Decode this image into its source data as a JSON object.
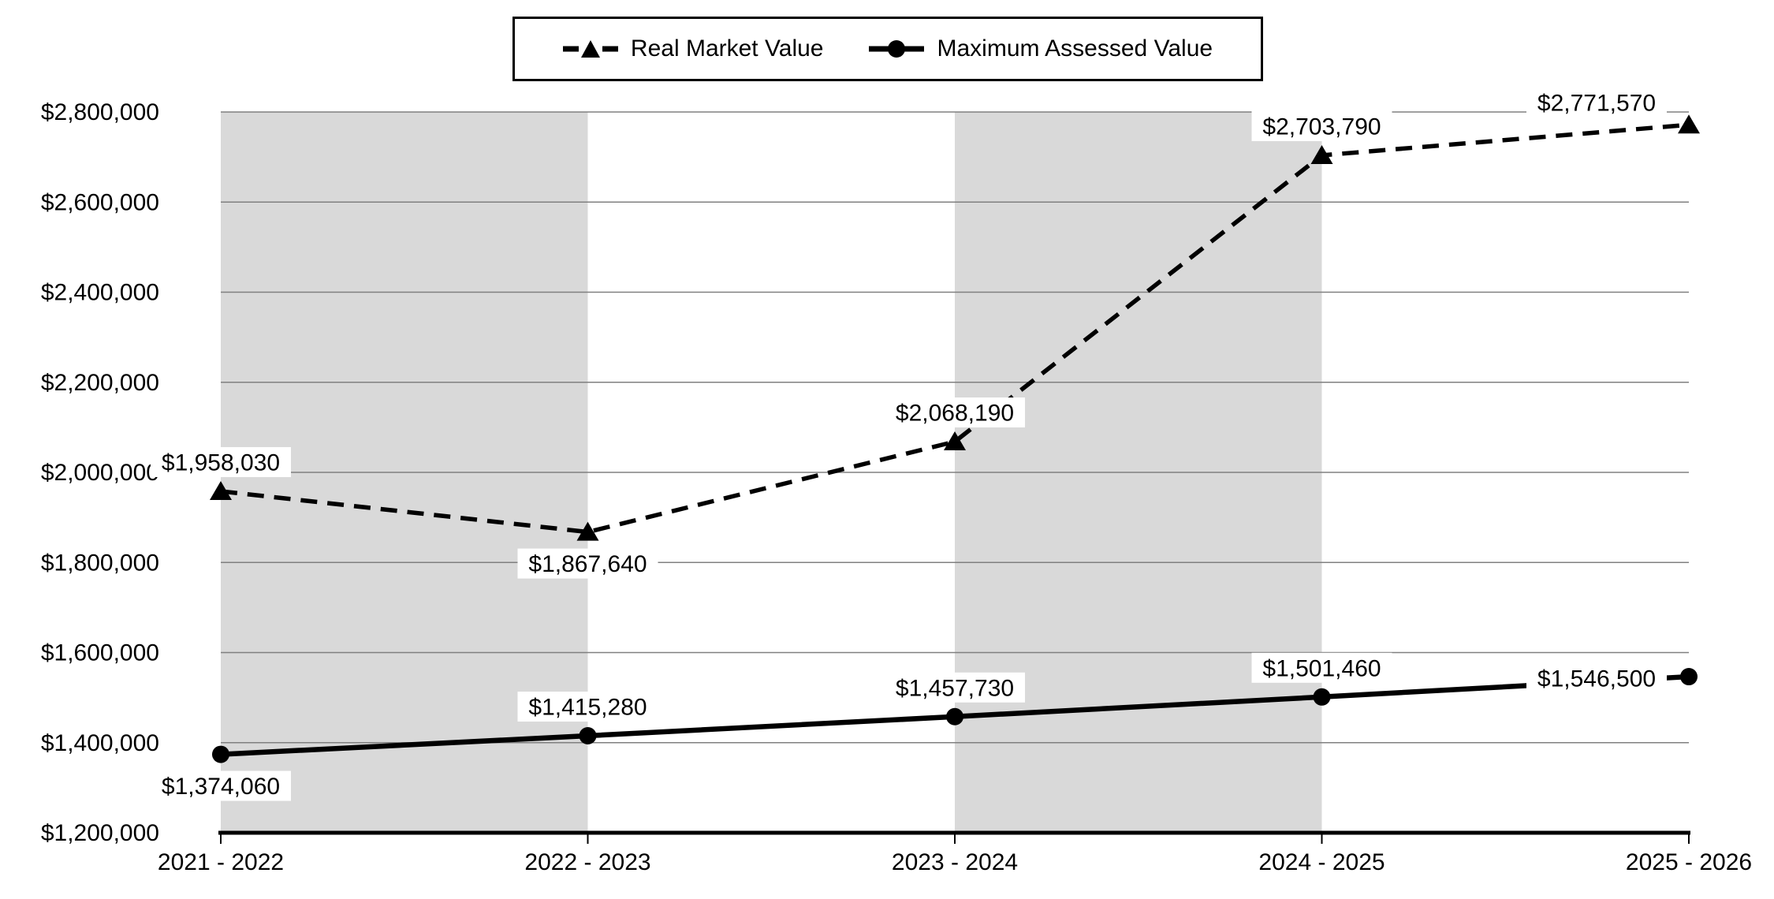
{
  "legend": {
    "items": [
      {
        "label": "Real Market Value"
      },
      {
        "label": "Maximum Assessed Value"
      }
    ]
  },
  "chart_data": {
    "type": "line",
    "title": "",
    "xlabel": "",
    "ylabel": "",
    "categories": [
      "2021 - 2022",
      "2022 - 2023",
      "2023 - 2024",
      "2024 - 2025",
      "2025 - 2026"
    ],
    "series": [
      {
        "name": "Real Market Value",
        "line_style": "dashed",
        "marker": "triangle",
        "color": "#000000",
        "values": [
          1958030,
          1867640,
          2068190,
          2703790,
          2771570
        ],
        "data_labels": [
          "$1,958,030",
          "$1,867,640",
          "$2,068,190",
          "$2,703,790",
          "$2,771,570"
        ],
        "label_positions": [
          "above",
          "below",
          "above",
          "above",
          "left-up"
        ]
      },
      {
        "name": "Maximum Assessed Value",
        "line_style": "solid",
        "marker": "circle",
        "color": "#000000",
        "values": [
          1374060,
          1415280,
          1457730,
          1501460,
          1546500
        ],
        "data_labels": [
          "$1,374,060",
          "$1,415,280",
          "$1,457,730",
          "$1,501,460",
          "$1,546,500"
        ],
        "label_positions": [
          "below",
          "above",
          "above",
          "above",
          "left"
        ]
      }
    ],
    "ylim": [
      1200000,
      2800000
    ],
    "y_ticks": [
      {
        "value": 1200000,
        "label": "$1,200,000"
      },
      {
        "value": 1400000,
        "label": "$1,400,000"
      },
      {
        "value": 1600000,
        "label": "$1,600,000"
      },
      {
        "value": 1800000,
        "label": "$1,800,000"
      },
      {
        "value": 2000000,
        "label": "$2,000,000"
      },
      {
        "value": 2200000,
        "label": "$2,200,000"
      },
      {
        "value": 2400000,
        "label": "$2,400,000"
      },
      {
        "value": 2600000,
        "label": "$2,600,000"
      },
      {
        "value": 2800000,
        "label": "$2,800,000"
      }
    ],
    "grid": true,
    "legend_position": "top",
    "plot_bands": {
      "color": "#d9d9d9",
      "intervals": [
        [
          0,
          1
        ],
        [
          2,
          3
        ]
      ]
    },
    "gridline_color": "#808080",
    "axis_color": "#000000",
    "label_box_color": "#ffffff",
    "text_color": "#000000"
  }
}
